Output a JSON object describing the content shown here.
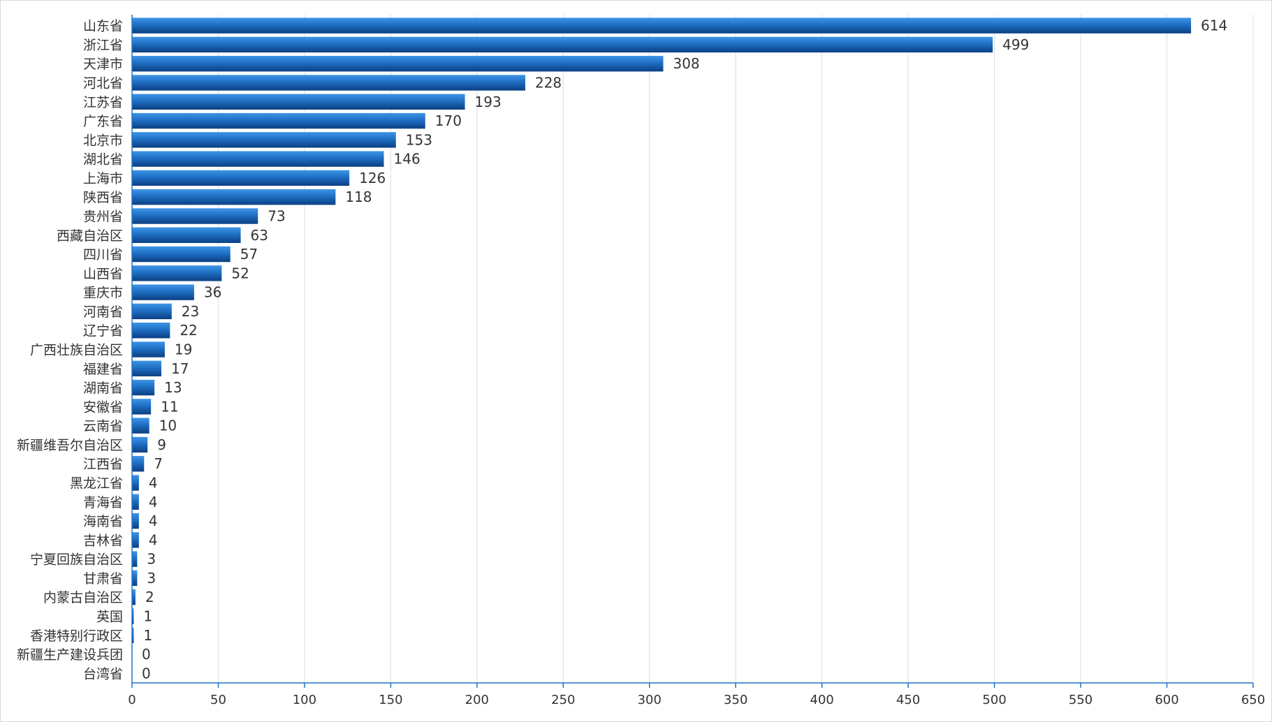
{
  "chart_data": {
    "type": "bar",
    "orientation": "horizontal",
    "title": "",
    "xlabel": "",
    "ylabel": "",
    "xlim": [
      0,
      650
    ],
    "x_ticks": [
      0,
      50,
      100,
      150,
      200,
      250,
      300,
      350,
      400,
      450,
      500,
      550,
      600,
      650
    ],
    "grid": true,
    "legend": "none",
    "bar_color_light": "#3d95e6",
    "bar_color_dark": "#0b3f82",
    "categories": [
      "山东省",
      "浙江省",
      "天津市",
      "河北省",
      "江苏省",
      "广东省",
      "北京市",
      "湖北省",
      "上海市",
      "陕西省",
      "贵州省",
      "西藏自治区",
      "四川省",
      "山西省",
      "重庆市",
      "河南省",
      "辽宁省",
      "广西壮族自治区",
      "福建省",
      "湖南省",
      "安徽省",
      "云南省",
      "新疆维吾尔自治区",
      "江西省",
      "黑龙江省",
      "青海省",
      "海南省",
      "吉林省",
      "宁夏回族自治区",
      "甘肃省",
      "内蒙古自治区",
      "英国",
      "香港特别行政区",
      "新疆生产建设兵团",
      "台湾省"
    ],
    "values": [
      614,
      499,
      308,
      228,
      193,
      170,
      153,
      146,
      126,
      118,
      73,
      63,
      57,
      52,
      36,
      23,
      22,
      19,
      17,
      13,
      11,
      10,
      9,
      7,
      4,
      4,
      4,
      4,
      3,
      3,
      2,
      1,
      1,
      0,
      0
    ]
  }
}
